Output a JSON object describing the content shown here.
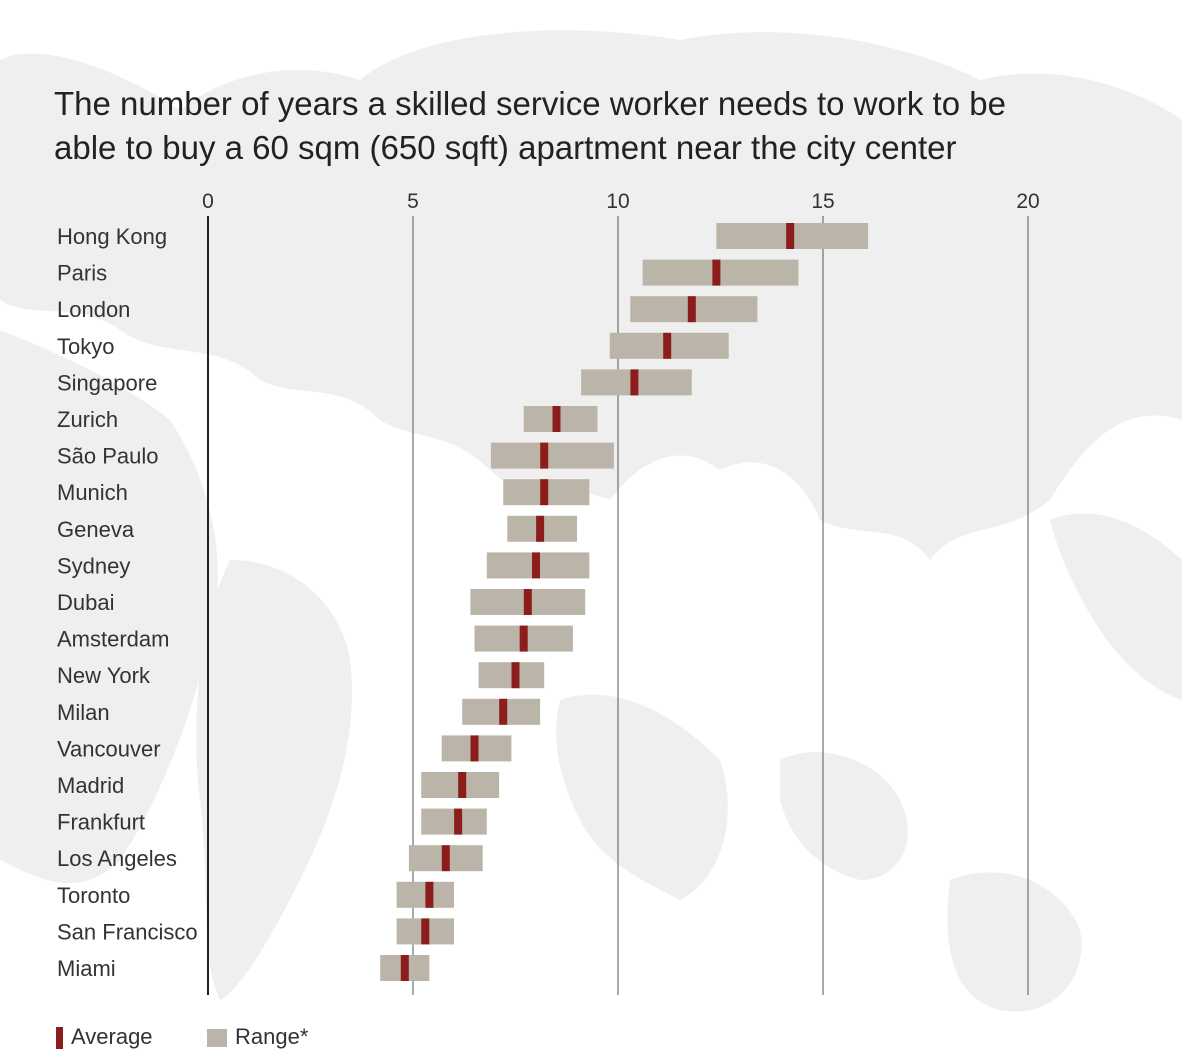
{
  "title_lines": [
    "The number of years a skilled service worker needs to work to be",
    "able to buy a 60 sqm (650 sqft) apartment near the city center"
  ],
  "colors": {
    "range": "#bbb5a9",
    "average": "#8b1d1d",
    "map": "#efefef",
    "grid": "#555555",
    "text": "#333333"
  },
  "legend": {
    "average_label": "Average",
    "range_label": "Range*"
  },
  "chart_data": {
    "type": "range-bar",
    "title": "The number of years a skilled service worker needs to work to be able to buy a 60 sqm (650 sqft) apartment near the city center",
    "x_ticks": [
      0,
      5,
      10,
      15,
      20
    ],
    "xlim": [
      0,
      20
    ],
    "grid": "vertical",
    "legend_position": "bottom-left",
    "categories": [
      "Hong Kong",
      "Paris",
      "London",
      "Tokyo",
      "Singapore",
      "Zurich",
      "São Paulo",
      "Munich",
      "Geneva",
      "Sydney",
      "Dubai",
      "Amsterdam",
      "New York",
      "Milan",
      "Vancouver",
      "Madrid",
      "Frankfurt",
      "Los Angeles",
      "Toronto",
      "San Francisco",
      "Miami"
    ],
    "series": [
      {
        "name": "Average",
        "values": [
          14.2,
          12.4,
          11.8,
          11.2,
          10.4,
          8.5,
          8.2,
          8.2,
          8.1,
          8.0,
          7.8,
          7.7,
          7.5,
          7.2,
          6.5,
          6.2,
          6.1,
          5.8,
          5.4,
          5.3,
          4.8
        ]
      },
      {
        "name": "Range*",
        "min": [
          12.4,
          10.6,
          10.3,
          9.8,
          9.1,
          7.7,
          6.9,
          7.2,
          7.3,
          6.8,
          6.4,
          6.5,
          6.6,
          6.2,
          5.7,
          5.2,
          5.2,
          4.9,
          4.6,
          4.6,
          4.2
        ],
        "max": [
          16.1,
          14.4,
          13.4,
          12.7,
          11.8,
          9.5,
          9.9,
          9.3,
          9.0,
          9.3,
          9.2,
          8.9,
          8.2,
          8.1,
          7.4,
          7.1,
          6.8,
          6.7,
          6.0,
          6.0,
          5.4
        ]
      }
    ]
  }
}
